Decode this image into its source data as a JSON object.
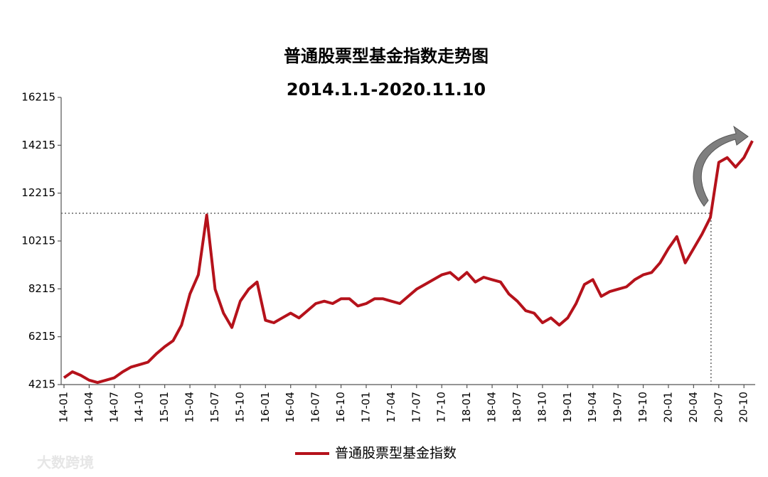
{
  "chart_data": {
    "type": "line",
    "title": "普通股票型基金指数走势图",
    "subtitle": "2014.1.1-2020.11.10",
    "watermark": "大数跨境",
    "x": [
      "14-01",
      null,
      null,
      "14-04",
      null,
      null,
      "14-07",
      null,
      null,
      "14-10",
      null,
      null,
      "15-01",
      null,
      null,
      "15-04",
      null,
      null,
      "15-07",
      null,
      null,
      "15-10",
      null,
      null,
      "16-01",
      null,
      null,
      "16-04",
      null,
      null,
      "16-07",
      null,
      null,
      "16-10",
      null,
      null,
      "17-01",
      null,
      null,
      "17-04",
      null,
      null,
      "17-07",
      null,
      null,
      "17-10",
      null,
      null,
      "18-01",
      null,
      null,
      "18-04",
      null,
      null,
      "18-07",
      null,
      null,
      "18-10",
      null,
      null,
      "19-01",
      null,
      null,
      "19-04",
      null,
      null,
      "19-07",
      null,
      null,
      "19-10",
      null,
      null,
      "20-01",
      null,
      null,
      "20-04",
      null,
      null,
      "20-07",
      null,
      null,
      "20-10",
      null
    ],
    "series": [
      {
        "name": "普通股票型基金指数",
        "color": "#b5121b",
        "values": [
          4500,
          4750,
          4600,
          4400,
          4300,
          4400,
          4500,
          4750,
          4950,
          5050,
          5150,
          5500,
          5800,
          6050,
          6700,
          8000,
          8800,
          11300,
          8200,
          7200,
          6600,
          7700,
          8200,
          8500,
          6900,
          6800,
          7000,
          7200,
          7000,
          7300,
          7600,
          7700,
          7600,
          7800,
          7800,
          7500,
          7600,
          7800,
          7800,
          7700,
          7600,
          7900,
          8200,
          8400,
          8600,
          8800,
          8900,
          8600,
          8900,
          8500,
          8700,
          8600,
          8500,
          8000,
          7700,
          7300,
          7200,
          6800,
          7000,
          6700,
          7000,
          7600,
          8400,
          8600,
          7900,
          8100,
          8200,
          8300,
          8600,
          8800,
          8900,
          9300,
          9900,
          10400,
          9300,
          9900,
          10500,
          11200,
          13500,
          13700,
          13300,
          13700,
          14400
        ]
      }
    ],
    "reference_line": 11373,
    "ylim": [
      4215,
      16215
    ],
    "yticks": [
      4215,
      6215,
      8215,
      10215,
      12215,
      14215,
      16215
    ],
    "grid": false,
    "legend": "bottom"
  }
}
